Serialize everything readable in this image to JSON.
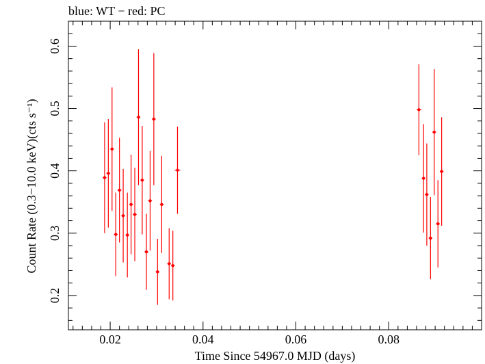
{
  "chart_data": {
    "type": "scatter",
    "title": "blue: WT − red: PC",
    "xlabel": "Time Since 54967.0 MJD (days)",
    "ylabel": "Count Rate (0.3−10.0 keV)(cts s⁻¹)",
    "xlim": [
      0.011,
      0.1
    ],
    "ylim": [
      0.145,
      0.64
    ],
    "xticks": [
      0.02,
      0.04,
      0.06,
      0.08
    ],
    "xtick_labels": [
      "0.02",
      "0.04",
      "0.06",
      "0.08"
    ],
    "yticks": [
      0.2,
      0.3,
      0.4,
      0.5,
      0.6
    ],
    "ytick_labels": [
      "0.2",
      "0.3",
      "0.4",
      "0.5",
      "0.6"
    ],
    "grid": false,
    "series": [
      {
        "color": "#ff0000",
        "points": [
          {
            "x": 0.0188,
            "xerr": 0.0004,
            "y": 0.389,
            "yerr": 0.089
          },
          {
            "x": 0.0196,
            "xerr": 0.0004,
            "y": 0.396,
            "yerr": 0.087
          },
          {
            "x": 0.0204,
            "xerr": 0.0004,
            "y": 0.435,
            "yerr": 0.099
          },
          {
            "x": 0.0212,
            "xerr": 0.0004,
            "y": 0.298,
            "yerr": 0.067
          },
          {
            "x": 0.022,
            "xerr": 0.0004,
            "y": 0.369,
            "yerr": 0.084
          },
          {
            "x": 0.0228,
            "xerr": 0.0004,
            "y": 0.328,
            "yerr": 0.075
          },
          {
            "x": 0.0237,
            "xerr": 0.0004,
            "y": 0.297,
            "yerr": 0.068
          },
          {
            "x": 0.0245,
            "xerr": 0.0004,
            "y": 0.346,
            "yerr": 0.08
          },
          {
            "x": 0.0253,
            "xerr": 0.0004,
            "y": 0.33,
            "yerr": 0.075
          },
          {
            "x": 0.0261,
            "xerr": 0.0004,
            "y": 0.486,
            "yerr": 0.109
          },
          {
            "x": 0.0269,
            "xerr": 0.0004,
            "y": 0.385,
            "yerr": 0.087
          },
          {
            "x": 0.0278,
            "xerr": 0.0004,
            "y": 0.27,
            "yerr": 0.061
          },
          {
            "x": 0.0286,
            "xerr": 0.0004,
            "y": 0.352,
            "yerr": 0.08
          },
          {
            "x": 0.0294,
            "xerr": 0.0004,
            "y": 0.483,
            "yerr": 0.106
          },
          {
            "x": 0.0302,
            "xerr": 0.0004,
            "y": 0.238,
            "yerr": 0.053
          },
          {
            "x": 0.0311,
            "xerr": 0.0004,
            "y": 0.346,
            "yerr": 0.078
          },
          {
            "x": 0.0327,
            "xerr": 0.0004,
            "y": 0.251,
            "yerr": 0.057
          },
          {
            "x": 0.0335,
            "xerr": 0.0004,
            "y": 0.248,
            "yerr": 0.056
          },
          {
            "x": 0.0345,
            "xerr": 0.0006,
            "y": 0.401,
            "yerr": 0.07
          },
          {
            "x": 0.0865,
            "xerr": 0.0005,
            "y": 0.498,
            "yerr": 0.073
          },
          {
            "x": 0.0875,
            "xerr": 0.0004,
            "y": 0.388,
            "yerr": 0.087
          },
          {
            "x": 0.0882,
            "xerr": 0.0004,
            "y": 0.362,
            "yerr": 0.082
          },
          {
            "x": 0.089,
            "xerr": 0.0004,
            "y": 0.292,
            "yerr": 0.066
          },
          {
            "x": 0.0898,
            "xerr": 0.0004,
            "y": 0.462,
            "yerr": 0.101
          },
          {
            "x": 0.0906,
            "xerr": 0.0004,
            "y": 0.315,
            "yerr": 0.07
          },
          {
            "x": 0.0914,
            "xerr": 0.0004,
            "y": 0.399,
            "yerr": 0.087
          }
        ]
      }
    ]
  }
}
